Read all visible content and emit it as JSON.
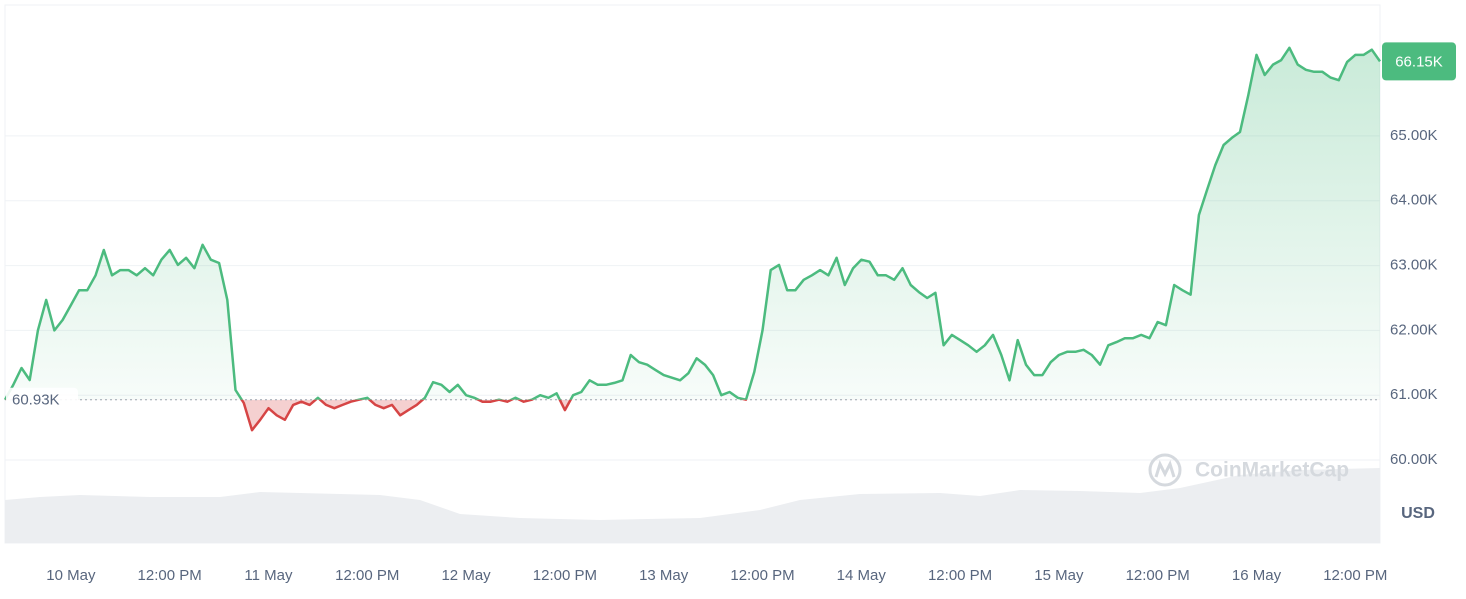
{
  "chart_data": {
    "type": "line",
    "watermark": "CoinMarketCap",
    "currency": "USD",
    "color": "#4cbb7f",
    "negative_color": "#d64545",
    "grid": true,
    "ylim": [
      58720,
      67020
    ],
    "yticks": [
      {
        "value": 60000,
        "label": "60.00K"
      },
      {
        "value": 61000,
        "label": "61.00K"
      },
      {
        "value": 62000,
        "label": "62.00K"
      },
      {
        "value": 63000,
        "label": "63.00K"
      },
      {
        "value": 64000,
        "label": "64.00K"
      },
      {
        "value": 65000,
        "label": "65.00K"
      }
    ],
    "baseline": {
      "value": 60930,
      "label": "60.93K"
    },
    "last_price": {
      "value": 66150,
      "label": "66.15K"
    },
    "categories": [
      null,
      null,
      null,
      null,
      null,
      null,
      null,
      null,
      "10 May",
      null,
      null,
      null,
      null,
      null,
      null,
      null,
      null,
      null,
      null,
      null,
      "12:00 PM",
      null,
      null,
      null,
      null,
      null,
      null,
      null,
      null,
      null,
      null,
      null,
      "11 May",
      null,
      null,
      null,
      null,
      null,
      null,
      null,
      null,
      null,
      null,
      null,
      "12:00 PM",
      null,
      null,
      null,
      null,
      null,
      null,
      null,
      null,
      null,
      null,
      null,
      "12 May",
      null,
      null,
      null,
      null,
      null,
      null,
      null,
      null,
      null,
      null,
      null,
      "12:00 PM",
      null,
      null,
      null,
      null,
      null,
      null,
      null,
      null,
      null,
      null,
      null,
      "13 May",
      null,
      null,
      null,
      null,
      null,
      null,
      null,
      null,
      null,
      null,
      null,
      "12:00 PM",
      null,
      null,
      null,
      null,
      null,
      null,
      null,
      null,
      null,
      null,
      null,
      "14 May",
      null,
      null,
      null,
      null,
      null,
      null,
      null,
      null,
      null,
      null,
      null,
      "12:00 PM",
      null,
      null,
      null,
      null,
      null,
      null,
      null,
      null,
      null,
      null,
      null,
      "15 May",
      null,
      null,
      null,
      null,
      null,
      null,
      null,
      null,
      null,
      null,
      null,
      "12:00 PM",
      null,
      null,
      null,
      null,
      null,
      null,
      null,
      null,
      null,
      null,
      null,
      "16 May",
      null,
      null,
      null,
      null,
      null,
      null,
      null,
      null,
      null,
      null,
      null,
      "12:00 PM",
      null,
      null,
      null
    ],
    "values": [
      60930,
      61157,
      61420,
      61235,
      62000,
      62470,
      62000,
      62160,
      62390,
      62620,
      62620,
      62850,
      63240,
      62850,
      62930,
      62930,
      62850,
      62960,
      62850,
      63090,
      63240,
      63010,
      63120,
      62960,
      63320,
      63090,
      63040,
      62470,
      61080,
      60880,
      60460,
      60620,
      60800,
      60690,
      60620,
      60850,
      60900,
      60850,
      60960,
      60850,
      60800,
      60850,
      60900,
      60930,
      60960,
      60850,
      60800,
      60850,
      60690,
      60770,
      60850,
      60960,
      61200,
      61160,
      61050,
      61160,
      61000,
      60960,
      60900,
      60900,
      60930,
      60900,
      60960,
      60900,
      60930,
      61000,
      60960,
      61030,
      60770,
      61000,
      61050,
      61230,
      61160,
      61160,
      61190,
      61230,
      61620,
      61510,
      61470,
      61390,
      61310,
      61270,
      61230,
      61340,
      61570,
      61470,
      61310,
      61000,
      61050,
      60960,
      60930,
      61360,
      62000,
      62930,
      63010,
      62620,
      62620,
      62780,
      62850,
      62930,
      62850,
      63120,
      62700,
      62960,
      63090,
      63060,
      62850,
      62850,
      62780,
      62960,
      62700,
      62590,
      62500,
      62580,
      61770,
      61930,
      61850,
      61770,
      61670,
      61770,
      61930,
      61620,
      61230,
      61850,
      61470,
      61310,
      61310,
      61510,
      61620,
      61670,
      61670,
      61700,
      61620,
      61470,
      61770,
      61820,
      61880,
      61880,
      61930,
      61880,
      62130,
      62080,
      62700,
      62620,
      62550,
      63780,
      64170,
      64550,
      64860,
      64970,
      65060,
      65630,
      66250,
      65940,
      66100,
      66170,
      66360,
      66100,
      66020,
      65990,
      65990,
      65900,
      65860,
      66140,
      66250,
      66250,
      66330,
      66150
    ]
  }
}
